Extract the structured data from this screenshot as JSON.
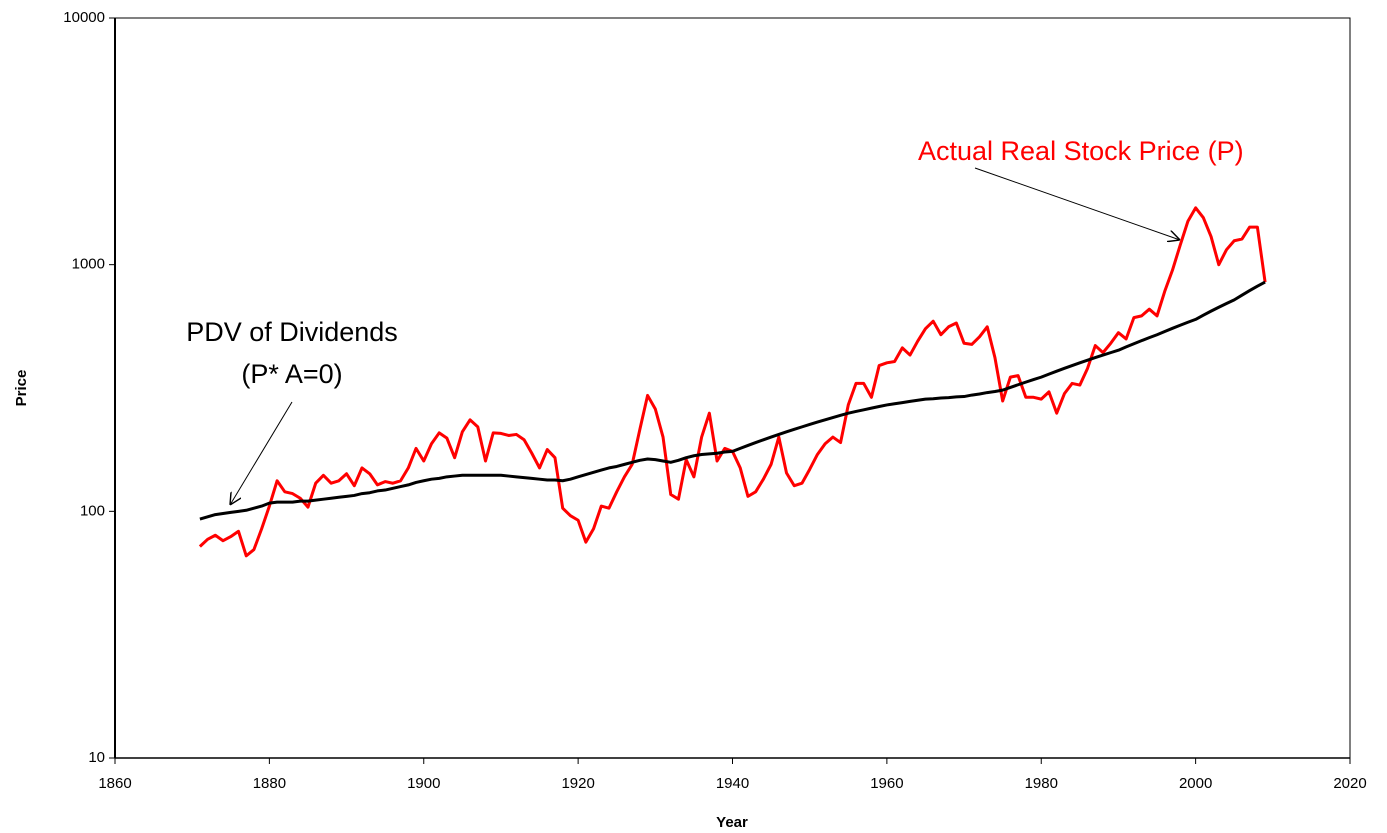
{
  "chart_data": {
    "type": "line",
    "x_label": "Year",
    "y_label": "Price",
    "log_y": true,
    "grid": false,
    "xlim": [
      1860,
      2020
    ],
    "xticks": [
      1860,
      1880,
      1900,
      1920,
      1940,
      1960,
      1980,
      2000,
      2020
    ],
    "ylim": [
      10,
      10000
    ],
    "yticks": [
      10,
      100,
      1000,
      10000
    ],
    "x": [
      1871,
      1872,
      1873,
      1874,
      1875,
      1876,
      1877,
      1878,
      1879,
      1880,
      1881,
      1882,
      1883,
      1884,
      1885,
      1886,
      1887,
      1888,
      1889,
      1890,
      1891,
      1892,
      1893,
      1894,
      1895,
      1896,
      1897,
      1898,
      1899,
      1900,
      1901,
      1902,
      1903,
      1904,
      1905,
      1906,
      1907,
      1908,
      1909,
      1910,
      1911,
      1912,
      1913,
      1914,
      1915,
      1916,
      1917,
      1918,
      1919,
      1920,
      1921,
      1922,
      1923,
      1924,
      1925,
      1926,
      1927,
      1928,
      1929,
      1930,
      1931,
      1932,
      1933,
      1934,
      1935,
      1936,
      1937,
      1938,
      1939,
      1940,
      1941,
      1942,
      1943,
      1944,
      1945,
      1946,
      1947,
      1948,
      1949,
      1950,
      1951,
      1952,
      1953,
      1954,
      1955,
      1956,
      1957,
      1958,
      1959,
      1960,
      1961,
      1962,
      1963,
      1964,
      1965,
      1966,
      1967,
      1968,
      1969,
      1970,
      1971,
      1972,
      1973,
      1974,
      1975,
      1976,
      1977,
      1978,
      1979,
      1980,
      1981,
      1982,
      1983,
      1984,
      1985,
      1986,
      1987,
      1988,
      1989,
      1990,
      1991,
      1992,
      1993,
      1994,
      1995,
      1996,
      1997,
      1998,
      1999,
      2000,
      2001,
      2002,
      2003,
      2004,
      2005,
      2006,
      2007,
      2008,
      2009
    ],
    "series": [
      {
        "name": "Actual Real Stock Price (P)",
        "color": "#ff0000",
        "values": [
          72,
          77,
          80,
          76,
          79,
          83,
          66,
          70,
          85,
          105,
          133,
          120,
          118,
          113,
          104,
          130,
          140,
          130,
          133,
          142,
          127,
          150,
          142,
          128,
          132,
          130,
          133,
          150,
          180,
          160,
          188,
          208,
          198,
          165,
          210,
          235,
          220,
          160,
          208,
          207,
          203,
          205,
          195,
          172,
          150,
          178,
          165,
          103,
          96,
          92,
          75,
          85,
          105,
          103,
          120,
          138,
          155,
          215,
          295,
          260,
          200,
          117,
          112,
          162,
          138,
          200,
          250,
          160,
          180,
          175,
          150,
          115,
          120,
          135,
          155,
          200,
          143,
          127,
          130,
          148,
          170,
          188,
          200,
          190,
          270,
          330,
          330,
          290,
          390,
          400,
          405,
          460,
          430,
          490,
          550,
          590,
          520,
          560,
          580,
          480,
          475,
          510,
          560,
          420,
          280,
          350,
          355,
          290,
          290,
          285,
          305,
          250,
          300,
          330,
          325,
          380,
          470,
          440,
          480,
          530,
          500,
          610,
          620,
          660,
          620,
          780,
          950,
          1200,
          1500,
          1700,
          1550,
          1300,
          1000,
          1150,
          1250,
          1270,
          1420,
          1420,
          850
        ]
      },
      {
        "name": "PDV of Dividends",
        "color": "#000000",
        "values": [
          93,
          95,
          97,
          98,
          99,
          100,
          101,
          103,
          105,
          108,
          109,
          109,
          109,
          110,
          110,
          111,
          112,
          113,
          114,
          115,
          116,
          118,
          119,
          121,
          122,
          124,
          126,
          128,
          131,
          133,
          135,
          136,
          138,
          139,
          140,
          140,
          140,
          140,
          140,
          140,
          139,
          138,
          137,
          136,
          135,
          134,
          134,
          133,
          135,
          138,
          141,
          144,
          147,
          150,
          152,
          155,
          158,
          161,
          163,
          162,
          160,
          158,
          161,
          165,
          168,
          170,
          171,
          172,
          174,
          175,
          180,
          185,
          190,
          195,
          200,
          205,
          210,
          215,
          220,
          225,
          230,
          235,
          240,
          245,
          250,
          254,
          258,
          262,
          266,
          270,
          273,
          276,
          279,
          282,
          285,
          286,
          288,
          289,
          291,
          292,
          296,
          299,
          303,
          306,
          310,
          318,
          326,
          334,
          342,
          350,
          360,
          370,
          380,
          390,
          400,
          410,
          420,
          430,
          440,
          450,
          464,
          478,
          492,
          506,
          520,
          536,
          552,
          568,
          584,
          600,
          624,
          648,
          672,
          696,
          720,
          752,
          785,
          818,
          850
        ]
      }
    ],
    "annotations": [
      "Actual Real Stock Price (P)",
      "PDV of Dividends",
      "(P* A=0)"
    ]
  }
}
